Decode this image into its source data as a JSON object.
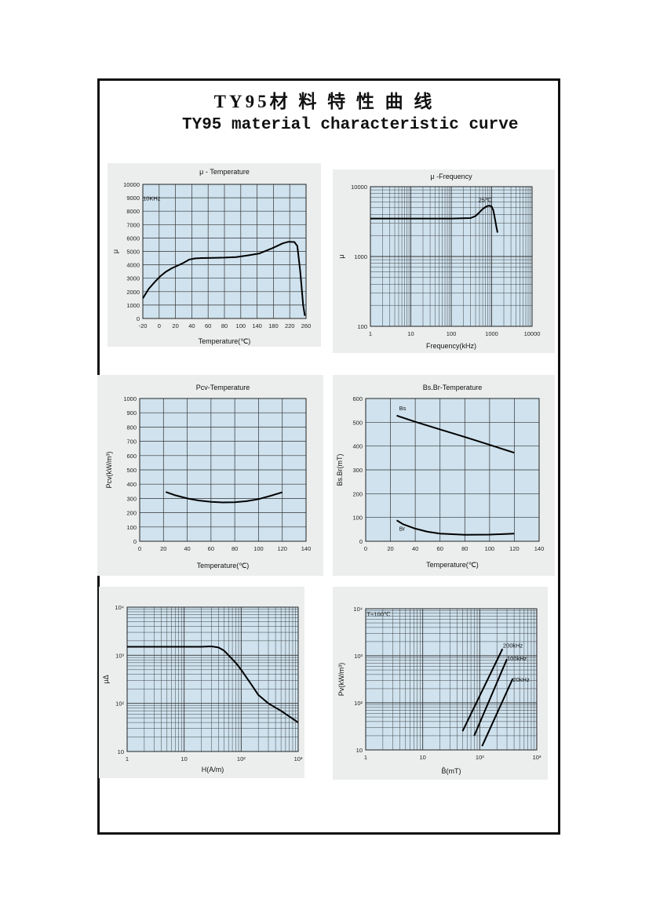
{
  "title_cn": "TY95材 料 特 性 曲 线",
  "title_en": "TY95 material characteristic curve",
  "chart_data": [
    {
      "type": "line",
      "title": "μ - Temperature",
      "xlabel": "Temperature(℃)",
      "ylabel": "μ",
      "annotation": "10KHz",
      "xlim": [
        -20,
        260
      ],
      "ylim": [
        0,
        10000
      ],
      "xticks": [
        "-20",
        "0",
        "20",
        "40",
        "60",
        "80",
        "100",
        "140",
        "180",
        "220",
        "260"
      ],
      "yticks": [
        "0",
        "1000",
        "2000",
        "3000",
        "4000",
        "5000",
        "6000",
        "7000",
        "8000",
        "9000",
        "10000"
      ],
      "series": [
        {
          "x": [
            -20,
            -10,
            0,
            10,
            20,
            30,
            40,
            50,
            60,
            70,
            80,
            100,
            120,
            140,
            160,
            180,
            200,
            210,
            220,
            230,
            240,
            245,
            250,
            255,
            258
          ],
          "y": [
            1500,
            2200,
            2700,
            3150,
            3500,
            3750,
            3950,
            4150,
            4400,
            4480,
            4500,
            4520,
            4540,
            4580,
            4700,
            4850,
            5200,
            5400,
            5600,
            5720,
            5700,
            5400,
            3500,
            1000,
            200
          ]
        }
      ]
    },
    {
      "type": "line",
      "title": "μ -Frequency",
      "xlabel": "Frequency(kHz)",
      "ylabel": "μ",
      "annotation": "25℃",
      "xscale": "log",
      "yscale": "log",
      "xlim": [
        1,
        10000
      ],
      "ylim": [
        100,
        10000
      ],
      "xticks": [
        "1",
        "10",
        "100",
        "1000",
        "10000"
      ],
      "yticks": [
        "100",
        "1000",
        "10000"
      ],
      "series": [
        {
          "x": [
            1,
            10,
            100,
            300,
            400,
            500,
            600,
            700,
            800,
            900,
            1000,
            1100,
            1200,
            1300,
            1400
          ],
          "y": [
            3500,
            3500,
            3500,
            3550,
            3800,
            4300,
            4800,
            5100,
            5300,
            5350,
            5200,
            4600,
            3500,
            2700,
            2200
          ]
        }
      ]
    },
    {
      "type": "line",
      "title": "Pcv-Temperature",
      "xlabel": "Temperature(℃)",
      "ylabel": "Pcv(kW/m³)",
      "xlim": [
        0,
        140
      ],
      "ylim": [
        0,
        1000
      ],
      "xticks": [
        "0",
        "20",
        "40",
        "60",
        "80",
        "100",
        "120",
        "140"
      ],
      "yticks": [
        "0",
        "100",
        "200",
        "300",
        "400",
        "500",
        "600",
        "700",
        "800",
        "900",
        "1000"
      ],
      "series": [
        {
          "x": [
            22,
            30,
            40,
            50,
            60,
            70,
            80,
            90,
            100,
            110,
            120
          ],
          "y": [
            345,
            322,
            300,
            285,
            276,
            272,
            273,
            281,
            295,
            318,
            343
          ]
        }
      ]
    },
    {
      "type": "line",
      "title": "Bs.Br-Temperature",
      "xlabel": "Temperature(℃)",
      "ylabel": "Bs.Br(mT)",
      "xlim": [
        0,
        140
      ],
      "ylim": [
        0,
        600
      ],
      "xticks": [
        "0",
        "20",
        "40",
        "60",
        "80",
        "100",
        "120",
        "140"
      ],
      "yticks": [
        "0",
        "100",
        "200",
        "300",
        "400",
        "500",
        "600"
      ],
      "series": [
        {
          "name": "Bs",
          "x": [
            25,
            40,
            60,
            80,
            100,
            120
          ],
          "y": [
            528,
            502,
            470,
            438,
            405,
            372
          ]
        },
        {
          "name": "Br",
          "x": [
            25,
            30,
            40,
            50,
            60,
            80,
            100,
            120
          ],
          "y": [
            88,
            72,
            53,
            40,
            32,
            27,
            28,
            32
          ]
        }
      ]
    },
    {
      "type": "line",
      "title": "",
      "xlabel": "H(A/m)",
      "ylabel": "μΔ",
      "xscale": "log",
      "yscale": "log",
      "xlim": [
        1,
        1000
      ],
      "ylim": [
        10,
        10000
      ],
      "xticks": [
        "1",
        "10",
        "10²",
        "10³"
      ],
      "yticks": [
        "10",
        "10²",
        "10³",
        "10⁴"
      ],
      "series": [
        {
          "x": [
            1,
            10,
            20,
            30,
            40,
            50,
            60,
            80,
            100,
            150,
            200,
            300,
            500,
            1000
          ],
          "y": [
            1500,
            1500,
            1500,
            1530,
            1450,
            1250,
            1000,
            700,
            500,
            250,
            150,
            100,
            70,
            40
          ]
        }
      ]
    },
    {
      "type": "line",
      "title": "",
      "xlabel": "B̂(mT)",
      "ylabel": "Pv(kW/m³)",
      "annotation": "T=100℃",
      "xscale": "log",
      "yscale": "log",
      "xlim": [
        1,
        1000
      ],
      "ylim": [
        10,
        10000
      ],
      "xticks": [
        "1",
        "10",
        "10²",
        "10³"
      ],
      "yticks": [
        "10",
        "10²",
        "10³",
        "10⁴"
      ],
      "series": [
        {
          "name": "200kHz",
          "x": [
            50,
            250
          ],
          "y": [
            25,
            1400
          ]
        },
        {
          "name": "100kHz",
          "x": [
            80,
            300
          ],
          "y": [
            20,
            850
          ]
        },
        {
          "name": "20kHz",
          "x": [
            110,
            380
          ],
          "y": [
            12,
            330
          ]
        }
      ]
    }
  ]
}
